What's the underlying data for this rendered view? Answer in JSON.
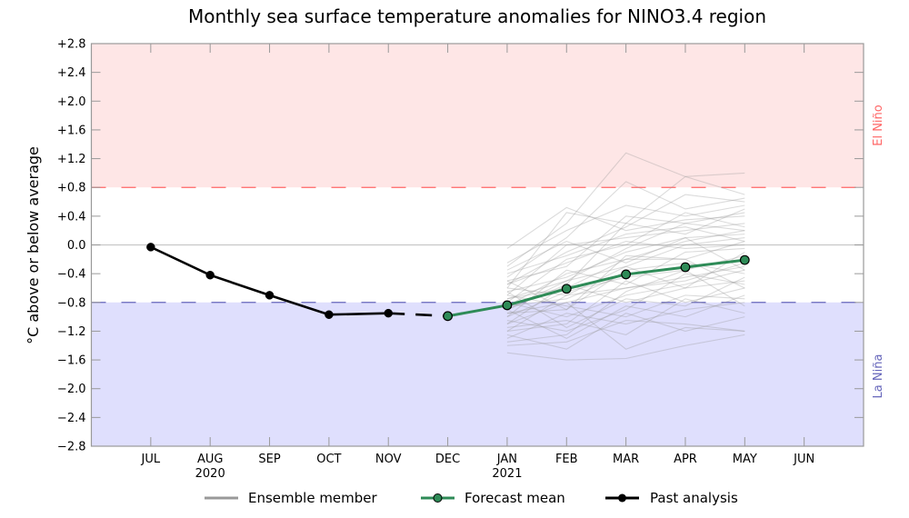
{
  "chart_data": {
    "type": "line",
    "title": "Monthly sea surface temperature anomalies for NINO3.4 region",
    "xlabel": "",
    "ylabel": "°C above or below average",
    "x_categories": [
      "JUL",
      "AUG",
      "SEP",
      "OCT",
      "NOV",
      "DEC",
      "JAN",
      "FEB",
      "MAR",
      "APR",
      "MAY",
      "JUN"
    ],
    "x_year_labels": [
      {
        "category": "AUG",
        "year": "2020"
      },
      {
        "category": "JAN",
        "year": "2021"
      }
    ],
    "x_range_index": [
      -1,
      12
    ],
    "ylim": [
      -2.8,
      2.8
    ],
    "y_ticks": [
      "+2.8",
      "+2.4",
      "+2.0",
      "+1.6",
      "+1.2",
      "+0.8",
      "+0.4",
      "0.0",
      "−0.4",
      "−0.8",
      "−1.2",
      "−1.6",
      "−2.0",
      "−2.4",
      "−2.8"
    ],
    "y_tick_values": [
      2.8,
      2.4,
      2.0,
      1.6,
      1.2,
      0.8,
      0.4,
      0.0,
      -0.4,
      -0.8,
      -1.2,
      -1.6,
      -2.0,
      -2.4,
      -2.8
    ],
    "thresholds": {
      "el_nino": {
        "value": 0.8,
        "label": "El Niño",
        "color": "#ff6666",
        "fill": "#fee6e6"
      },
      "la_nina": {
        "value": -0.8,
        "label": "La Niña",
        "color": "#6666bb",
        "fill": "#dfdffd"
      }
    },
    "zero_line_color": "#c8c8c8",
    "series": [
      {
        "name": "Past analysis",
        "color": "#000000",
        "x": [
          "JUL",
          "AUG",
          "SEP",
          "OCT",
          "NOV"
        ],
        "values": [
          -0.03,
          -0.42,
          -0.7,
          -0.97,
          -0.95
        ]
      },
      {
        "name": "Past analysis (gap to forecast)",
        "color": "#000000",
        "style": "dashed",
        "x": [
          "NOV",
          "DEC"
        ],
        "values": [
          -0.95,
          -0.99
        ]
      },
      {
        "name": "Forecast mean",
        "color": "#2e8b57",
        "x": [
          "DEC",
          "JAN",
          "FEB",
          "MAR",
          "APR",
          "MAY"
        ],
        "values": [
          -0.99,
          -0.84,
          -0.61,
          -0.41,
          -0.31,
          -0.21
        ]
      }
    ],
    "ensemble": {
      "name": "Ensemble member",
      "color": "#999999",
      "x": [
        "JAN",
        "FEB",
        "MAR",
        "APR",
        "MAY"
      ],
      "members": [
        [
          -0.05,
          0.52,
          0.2,
          0.35,
          0.4
        ],
        [
          -0.3,
          0.3,
          1.28,
          0.95,
          1.0
        ],
        [
          -0.45,
          0.1,
          0.88,
          0.5,
          0.65
        ],
        [
          -0.6,
          0.45,
          0.3,
          0.95,
          0.7
        ],
        [
          -0.25,
          0.2,
          0.55,
          0.4,
          0.55
        ],
        [
          -0.55,
          -0.1,
          0.25,
          0.7,
          0.6
        ],
        [
          -0.7,
          0.0,
          0.1,
          0.2,
          0.3
        ],
        [
          -0.5,
          -0.3,
          0.4,
          0.3,
          0.2
        ],
        [
          -0.8,
          -0.2,
          0.0,
          0.45,
          0.25
        ],
        [
          -0.65,
          -0.45,
          -0.1,
          0.1,
          0.15
        ],
        [
          -0.9,
          -0.5,
          -0.3,
          0.0,
          0.1
        ],
        [
          -0.75,
          -0.6,
          -0.2,
          -0.2,
          0.05
        ],
        [
          -1.0,
          -0.35,
          -0.55,
          -0.1,
          -0.05
        ],
        [
          -0.85,
          -0.75,
          -0.4,
          -0.3,
          -0.2
        ],
        [
          -0.6,
          -0.7,
          -0.6,
          -0.45,
          -0.3
        ],
        [
          -0.95,
          -0.9,
          -0.35,
          -0.25,
          -0.4
        ],
        [
          -1.1,
          -0.55,
          -0.8,
          -0.6,
          -0.5
        ],
        [
          -0.8,
          -1.0,
          -0.7,
          -0.55,
          -0.35
        ],
        [
          -1.2,
          -1.1,
          -0.5,
          -0.8,
          -0.6
        ],
        [
          -0.7,
          -0.85,
          -1.0,
          -0.7,
          -0.75
        ],
        [
          -1.05,
          -1.2,
          -0.9,
          -0.4,
          -0.55
        ],
        [
          -1.3,
          -0.95,
          -1.1,
          -0.9,
          -0.8
        ],
        [
          -0.9,
          -1.3,
          -0.85,
          -1.0,
          -0.7
        ],
        [
          -1.15,
          -1.05,
          -1.25,
          -0.75,
          -0.95
        ],
        [
          -1.4,
          -1.35,
          -1.05,
          -1.1,
          -1.2
        ],
        [
          -1.25,
          -1.45,
          -0.95,
          -1.2,
          -1.0
        ],
        [
          -1.5,
          -1.6,
          -1.58,
          -1.4,
          -1.25
        ],
        [
          -1.1,
          -0.8,
          -1.45,
          -1.15,
          -1.2
        ],
        [
          -0.55,
          -0.25,
          0.05,
          -0.05,
          0.0
        ],
        [
          -0.4,
          -0.15,
          0.15,
          0.25,
          0.05
        ],
        [
          -0.85,
          -0.4,
          -0.2,
          0.05,
          0.2
        ],
        [
          -1.0,
          -0.65,
          -0.45,
          -0.35,
          -0.15
        ],
        [
          -0.75,
          -0.5,
          -0.05,
          0.3,
          0.45
        ],
        [
          -0.95,
          -0.8,
          -0.6,
          -0.5,
          -0.25
        ],
        [
          -0.65,
          -1.15,
          -0.75,
          -0.85,
          -0.45
        ],
        [
          -1.2,
          -0.7,
          -0.3,
          -0.6,
          -0.1
        ],
        [
          -0.5,
          -0.9,
          -0.15,
          -0.2,
          -0.6
        ],
        [
          -1.35,
          -1.25,
          -0.65,
          -0.35,
          -0.85
        ],
        [
          -0.35,
          0.05,
          -0.25,
          0.1,
          -0.35
        ],
        [
          -0.9,
          -0.55,
          0.3,
          0.15,
          0.5
        ]
      ]
    },
    "legend": {
      "position": "bottom-center",
      "entries": [
        {
          "label": "Ensemble member",
          "color": "#999999",
          "marker": "none"
        },
        {
          "label": "Forecast mean",
          "color": "#2e8b57",
          "marker": "circle"
        },
        {
          "label": "Past analysis",
          "color": "#000000",
          "marker": "circle"
        }
      ]
    }
  }
}
